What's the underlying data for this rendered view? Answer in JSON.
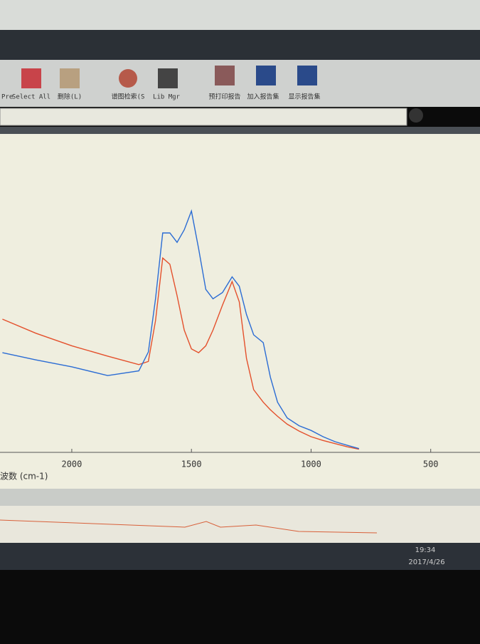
{
  "ui": {
    "toolbar": [
      "Pre",
      "Select All",
      "删除(L)",
      "谱图检索(S",
      "Lib Mgr",
      "预打印报告",
      "加入报告集",
      "显示报告集"
    ],
    "taskbar": {
      "time": "19:34",
      "date": "2017/4/26"
    }
  },
  "chart_data": {
    "type": "line",
    "x_label": "波数 (cm-1)",
    "x": [
      2290,
      2150,
      2000,
      1850,
      1720,
      1680,
      1650,
      1620,
      1590,
      1560,
      1530,
      1500,
      1470,
      1440,
      1410,
      1370,
      1330,
      1300,
      1270,
      1240,
      1200,
      1170,
      1140,
      1100,
      1050,
      1000,
      950,
      900,
      850,
      800
    ],
    "series": [
      {
        "color": "#e4502c",
        "values": [
          42.5,
          38,
          34,
          30.7,
          28,
          29,
          42,
          62,
          60,
          50,
          39,
          33,
          31.8,
          34,
          39,
          47,
          54.5,
          48,
          30,
          20,
          16,
          13.6,
          11.5,
          9,
          6.8,
          5,
          3.8,
          2.8,
          1.8,
          1
        ]
      },
      {
        "color": "#2b6cd4",
        "values": [
          31.8,
          29.5,
          27.3,
          24.5,
          26,
          32,
          49,
          70,
          70,
          67,
          71,
          77,
          65,
          52,
          49,
          51,
          56,
          53,
          44,
          37.5,
          35,
          24,
          16,
          11,
          8.5,
          7,
          5,
          3.4,
          2.3,
          1.2
        ]
      }
    ],
    "xlim": [
      2300,
      300
    ],
    "ylim": [
      0,
      100
    ],
    "xticks": [
      2000,
      1500,
      1000,
      500
    ]
  }
}
